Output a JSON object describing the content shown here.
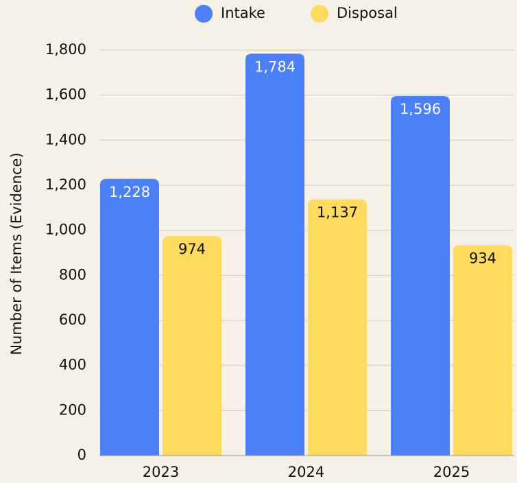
{
  "chart_data": {
    "type": "bar",
    "y_label": "Number of Items (Evidence)",
    "categories": [
      "2023",
      "2024",
      "2025"
    ],
    "series": [
      {
        "name": "Intake",
        "color": "#4b80f8",
        "label_color": "#ffffff",
        "values": [
          1228,
          1784,
          1596
        ],
        "value_labels": [
          "1,228",
          "1,784",
          "1,596"
        ]
      },
      {
        "name": "Disposal",
        "color": "#fedb5c",
        "label_color": "#111111",
        "values": [
          974,
          1137,
          934
        ],
        "value_labels": [
          "974",
          "1,137",
          "934"
        ]
      }
    ],
    "ylim": [
      0,
      1800
    ],
    "yticks": [
      0,
      200,
      400,
      600,
      800,
      {
        "value": 1000,
        "label": "1,000"
      },
      {
        "value": 1200,
        "label": "1,200"
      },
      {
        "value": 1400,
        "label": "1,400"
      },
      {
        "value": 1600,
        "label": "1,600"
      },
      {
        "value": 1800,
        "label": "1,800"
      }
    ],
    "grid": true,
    "legend": "top"
  }
}
